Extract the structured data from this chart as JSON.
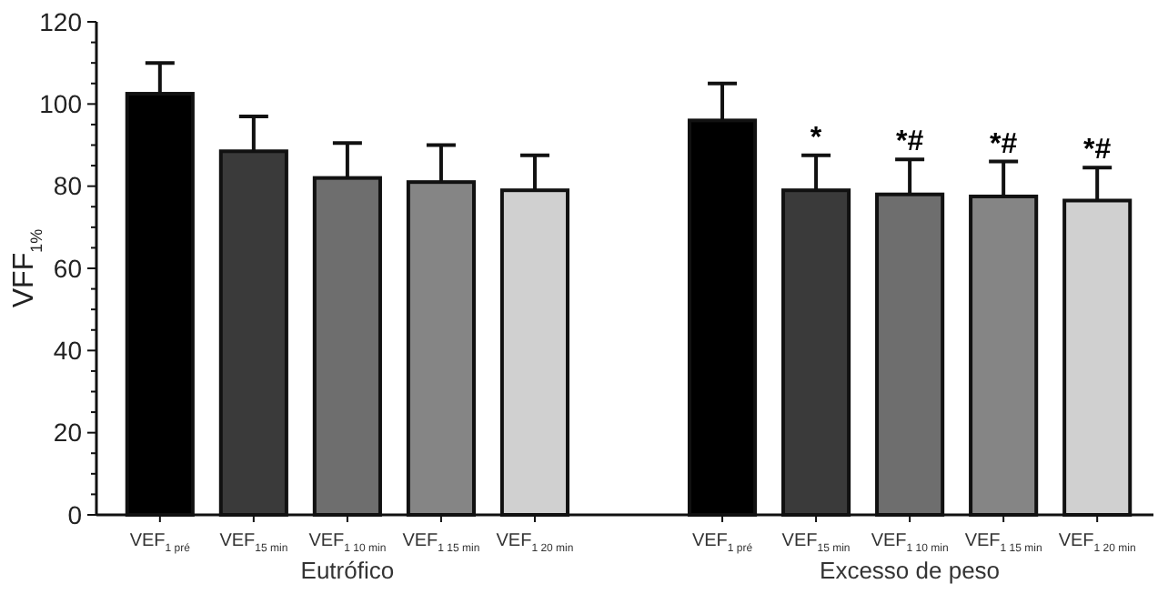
{
  "chart_data": {
    "type": "bar",
    "ylabel": "VFF$_{1%}$",
    "categories": [
      "VEF$_{1 pré}$",
      "VEF$_{15 min}$",
      "VEF$_{1 10 min}$",
      "VEF$_{1 15 min}$",
      "VEF$_{1 20 min}$",
      null,
      "VEF$_{1 pré}$",
      "VEF$_{15 min}$",
      "VEF$_{1 10 min}$",
      "VEF$_{1 15 min}$",
      "VEF$_{1 20 min}$"
    ],
    "values": [
      102.5,
      88.5,
      82,
      81,
      79,
      null,
      96,
      79,
      78,
      77.5,
      76.5
    ],
    "errors": [
      7.5,
      8.5,
      8.5,
      9,
      8.5,
      null,
      9,
      8.5,
      8.5,
      8.5,
      8
    ],
    "colors": [
      "#000000",
      "#3a3a3a",
      "#6e6e6e",
      "#858585",
      "#d0d0d0",
      null,
      "#000000",
      "#3a3a3a",
      "#6e6e6e",
      "#858585",
      "#d0d0d0"
    ],
    "value_labels": [
      null,
      null,
      null,
      null,
      null,
      null,
      null,
      "*",
      "*#",
      "*#",
      "*#"
    ],
    "annotations": [
      "Eutrófico",
      "Excesso de peso"
    ],
    "ylim": [
      0,
      120
    ],
    "yticks": [
      0,
      {
        "value": 5,
        "label": null
      },
      {
        "value": 10,
        "label": null
      },
      {
        "value": 15,
        "label": null
      },
      20,
      {
        "value": 25,
        "label": null
      },
      {
        "value": 30,
        "label": null
      },
      {
        "value": 35,
        "label": null
      },
      40,
      {
        "value": 45,
        "label": null
      },
      {
        "value": 50,
        "label": null
      },
      {
        "value": 55,
        "label": null
      },
      60,
      {
        "value": 65,
        "label": null
      },
      {
        "value": 70,
        "label": null
      },
      {
        "value": 75,
        "label": null
      },
      80,
      {
        "value": 85,
        "label": null
      },
      {
        "value": 90,
        "label": null
      },
      {
        "value": 95,
        "label": null
      },
      100,
      {
        "value": 105,
        "label": null
      },
      {
        "value": 110,
        "label": null
      },
      {
        "value": 115,
        "label": null
      },
      120
    ],
    "grid": false
  }
}
